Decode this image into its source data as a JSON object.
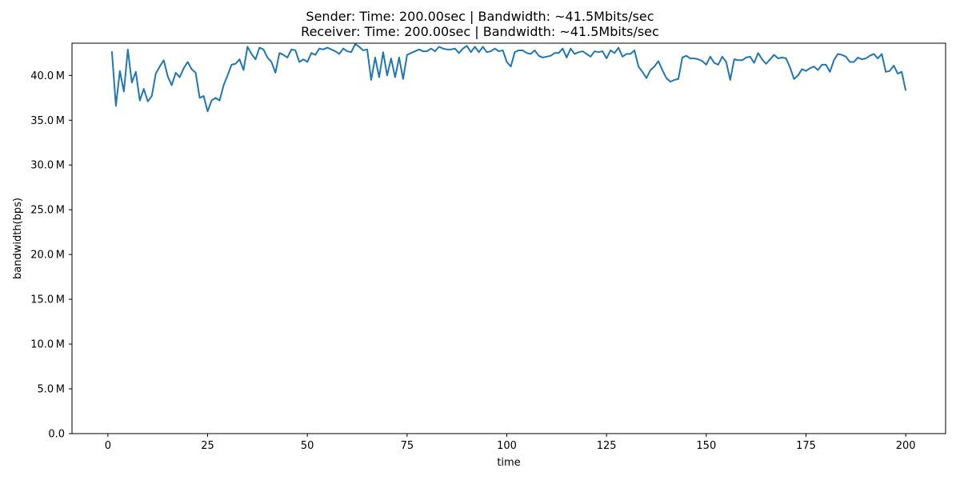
{
  "chart_data": {
    "type": "line",
    "title_lines": [
      "Sender: Time: 200.00sec | Bandwidth: ~41.5Mbits/sec",
      "Receiver: Time: 200.00sec | Bandwidth: ~41.5Mbits/sec"
    ],
    "xlabel": "time",
    "ylabel": "bandwidth(bps)",
    "xlim": [
      -9,
      210
    ],
    "ylim": [
      0,
      43.6
    ],
    "y_unit_label": "M",
    "x_ticks": [
      0,
      25,
      50,
      75,
      100,
      125,
      150,
      175,
      200
    ],
    "x_tick_labels": [
      "0",
      "25",
      "50",
      "75",
      "100",
      "125",
      "150",
      "175",
      "200"
    ],
    "y_ticks": [
      0,
      5,
      10,
      15,
      20,
      25,
      30,
      35,
      40
    ],
    "y_tick_labels": [
      "0.0",
      "5.0 M",
      "10.0 M",
      "15.0 M",
      "20.0 M",
      "25.0 M",
      "30.0 M",
      "35.0 M",
      "40.0 M"
    ],
    "series": [
      {
        "color": "#1f77b4",
        "x_start": 1,
        "x_step": 1,
        "values_mbps": [
          42.7,
          36.6,
          40.5,
          38.2,
          42.9,
          39.2,
          40.4,
          37.2,
          38.5,
          37.1,
          37.7,
          40.2,
          41.0,
          41.7,
          39.9,
          38.9,
          40.3,
          39.8,
          40.8,
          41.5,
          40.7,
          40.3,
          37.5,
          37.7,
          36.0,
          37.2,
          37.5,
          37.2,
          38.9,
          40.0,
          41.2,
          41.3,
          41.8,
          40.6,
          43.2,
          42.4,
          41.8,
          43.1,
          42.9,
          42.0,
          41.5,
          40.3,
          42.5,
          42.3,
          42.0,
          42.9,
          42.8,
          41.5,
          41.8,
          41.5,
          42.5,
          42.3,
          43.0,
          42.9,
          43.1,
          42.9,
          42.7,
          42.4,
          43.0,
          42.7,
          42.6,
          43.5,
          43.2,
          42.8,
          42.9,
          39.5,
          42.0,
          39.8,
          42.6,
          40.0,
          41.9,
          39.8,
          42.0,
          39.6,
          42.3,
          42.5,
          42.7,
          42.9,
          42.7,
          42.7,
          43.0,
          42.7,
          43.2,
          43.0,
          42.9,
          42.9,
          43.0,
          42.5,
          43.0,
          43.3,
          42.6,
          43.2,
          42.6,
          43.2,
          42.6,
          42.7,
          43.0,
          42.7,
          42.8,
          41.5,
          41.0,
          42.6,
          42.8,
          42.8,
          42.5,
          42.4,
          42.8,
          42.2,
          42.0,
          42.1,
          42.2,
          42.5,
          42.5,
          43.0,
          42.0,
          43.0,
          42.4,
          42.6,
          42.7,
          42.4,
          42.1,
          42.7,
          42.6,
          42.7,
          41.9,
          42.8,
          42.5,
          43.1,
          42.1,
          42.4,
          42.4,
          42.8,
          41.0,
          40.4,
          39.7,
          40.6,
          41.0,
          41.6,
          40.6,
          39.7,
          39.3,
          39.5,
          39.6,
          42.0,
          42.2,
          41.9,
          41.9,
          41.8,
          41.6,
          41.2,
          42.1,
          41.4,
          41.2,
          42.1,
          41.5,
          39.5,
          41.8,
          41.7,
          41.7,
          42.0,
          42.1,
          41.4,
          42.5,
          41.8,
          41.3,
          41.8,
          42.3,
          41.9,
          42.0,
          41.9,
          40.9,
          39.6,
          40.0,
          40.7,
          40.5,
          40.8,
          41.0,
          40.6,
          41.2,
          41.2,
          40.4,
          41.7,
          42.4,
          42.3,
          42.1,
          41.5,
          41.5,
          42.0,
          41.8,
          41.9,
          42.2,
          42.4,
          41.9,
          42.4,
          40.4,
          40.5,
          41.1,
          40.2,
          40.4,
          38.3
        ]
      }
    ]
  }
}
